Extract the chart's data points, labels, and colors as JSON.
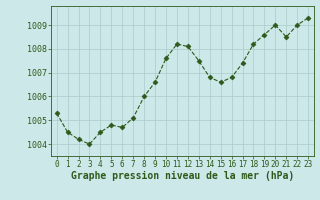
{
  "x": [
    0,
    1,
    2,
    3,
    4,
    5,
    6,
    7,
    8,
    9,
    10,
    11,
    12,
    13,
    14,
    15,
    16,
    17,
    18,
    19,
    20,
    21,
    22,
    23
  ],
  "y": [
    1005.3,
    1004.5,
    1004.2,
    1004.0,
    1004.5,
    1004.8,
    1004.7,
    1005.1,
    1006.0,
    1006.6,
    1007.6,
    1008.2,
    1008.1,
    1007.5,
    1006.8,
    1006.6,
    1006.8,
    1007.4,
    1008.2,
    1008.6,
    1009.0,
    1008.5,
    1009.0,
    1009.3
  ],
  "line_color": "#2d5a1b",
  "marker": "D",
  "marker_size": 2.5,
  "bg_color": "#cce8e8",
  "grid_color": "#aacccc",
  "xlabel": "Graphe pression niveau de la mer (hPa)",
  "xlabel_fontsize": 7,
  "yticks": [
    1004,
    1005,
    1006,
    1007,
    1008,
    1009
  ],
  "ylim": [
    1003.5,
    1009.8
  ],
  "xlim": [
    -0.5,
    23.5
  ],
  "xticks": [
    0,
    1,
    2,
    3,
    4,
    5,
    6,
    7,
    8,
    9,
    10,
    11,
    12,
    13,
    14,
    15,
    16,
    17,
    18,
    19,
    20,
    21,
    22,
    23
  ],
  "tick_fontsize": 5.5,
  "y_tick_fontsize": 6
}
